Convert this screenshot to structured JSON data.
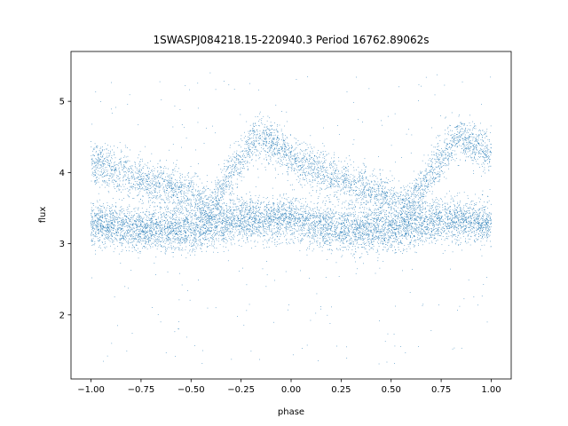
{
  "chart_data": {
    "type": "scatter",
    "title": "1SWASPJ084218.15-220940.3 Period 16762.89062s",
    "xlabel": "phase",
    "ylabel": "flux",
    "xlim": [
      -1.1,
      1.1
    ],
    "ylim": [
      1.1,
      5.7
    ],
    "xticks": [
      -1.0,
      -0.75,
      -0.5,
      -0.25,
      0.0,
      0.25,
      0.5,
      0.75,
      1.0
    ],
    "xtick_labels": [
      "−1.00",
      "−0.75",
      "−0.50",
      "−0.25",
      "0.00",
      "0.25",
      "0.50",
      "0.75",
      "1.00"
    ],
    "yticks": [
      2,
      3,
      4,
      5
    ],
    "ytick_labels": [
      "2",
      "3",
      "4",
      "5"
    ],
    "grid": false,
    "series": [
      {
        "color": "#1f77b4",
        "marker": "dot",
        "phase_range": [
          -1.0,
          1.0
        ],
        "lower_branch": {
          "phase": [
            -1.0,
            -0.75,
            -0.5,
            -0.25,
            0.0,
            0.25,
            0.5,
            0.75,
            1.0
          ],
          "flux": [
            3.3,
            3.2,
            3.2,
            3.35,
            3.35,
            3.2,
            3.2,
            3.35,
            3.3
          ],
          "spread": 0.15
        },
        "upper_branch": {
          "phase": [
            -1.0,
            -0.75,
            -0.5,
            -0.4,
            -0.3,
            -0.2,
            -0.15,
            -0.05,
            0.0,
            0.25,
            0.5,
            0.6,
            0.7,
            0.8,
            0.85,
            0.95,
            1.0
          ],
          "flux": [
            4.15,
            3.9,
            3.7,
            3.55,
            4.0,
            4.4,
            4.5,
            4.35,
            4.2,
            3.9,
            3.65,
            3.55,
            4.0,
            4.4,
            4.5,
            4.35,
            4.25
          ],
          "spread": 0.15
        },
        "outlier_range": [
          1.3,
          5.4
        ]
      }
    ]
  }
}
